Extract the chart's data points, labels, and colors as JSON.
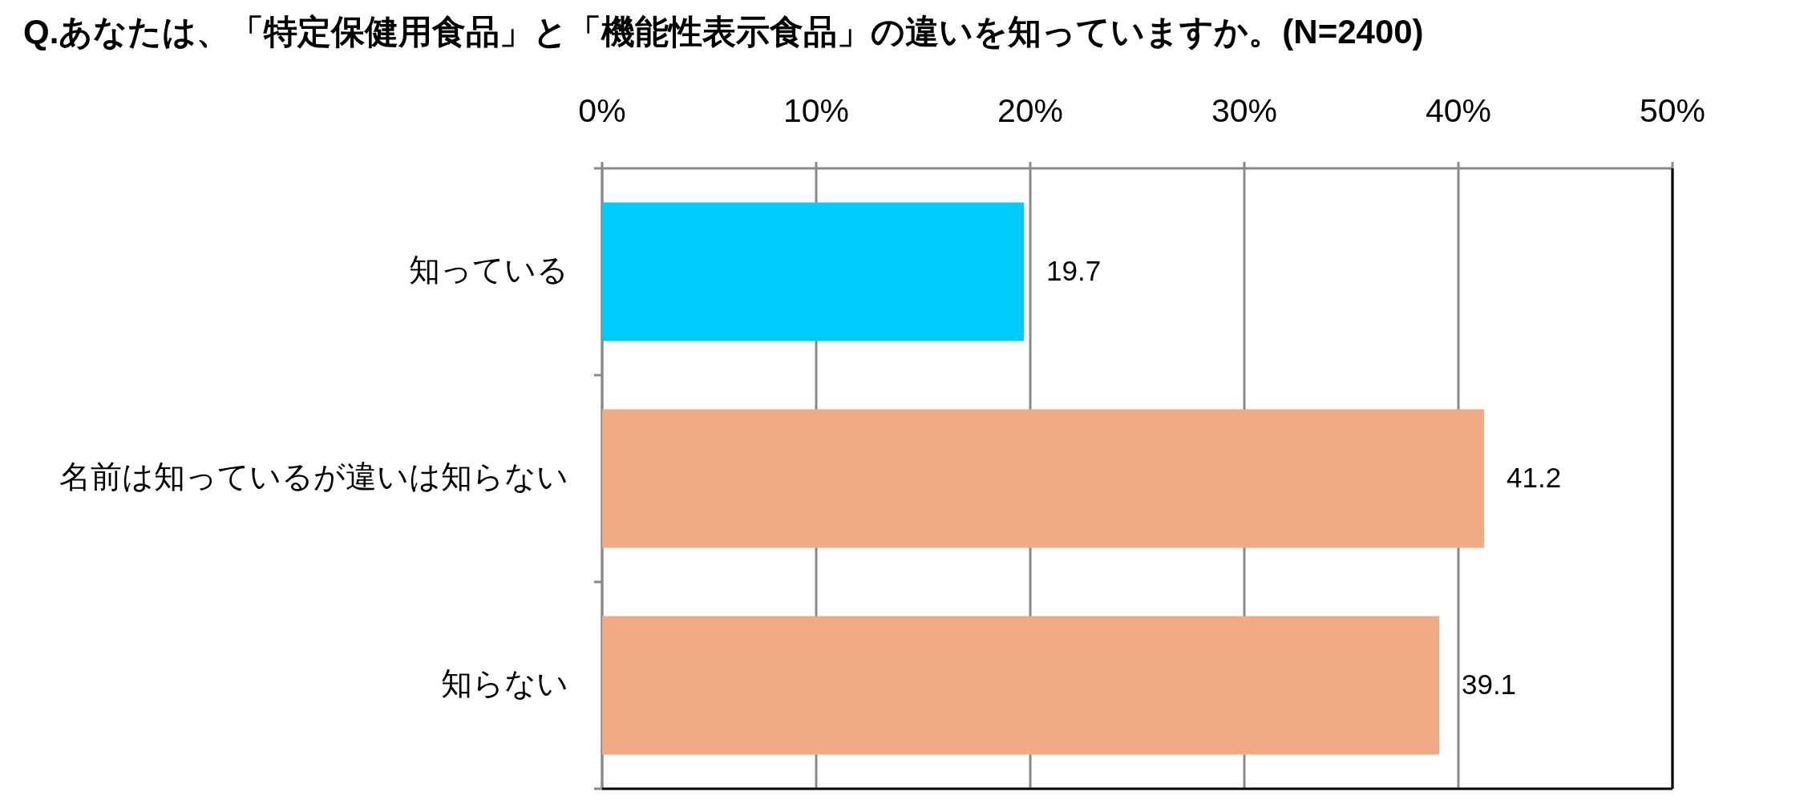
{
  "chart_data": {
    "type": "bar",
    "orientation": "horizontal",
    "title": "Q.あなたは、「特定保健用食品」と「機能性表示食品」の違いを知っていますか。(N=2400)",
    "categories": [
      "知っている",
      "名前は知っているが違いは知らない",
      "知らない"
    ],
    "values": [
      19.7,
      41.2,
      39.1
    ],
    "colors": [
      "#00ccff",
      "#f2aa84",
      "#f2aa84"
    ],
    "xlim": [
      0,
      50
    ],
    "xticks": [
      {
        "value": 0,
        "label": "0%"
      },
      {
        "value": 10,
        "label": "10%"
      },
      {
        "value": 20,
        "label": "20%"
      },
      {
        "value": 30,
        "label": "30%"
      },
      {
        "value": 40,
        "label": "40%"
      },
      {
        "value": 50,
        "label": "50%"
      }
    ],
    "grid": "x",
    "data_labels": true
  }
}
